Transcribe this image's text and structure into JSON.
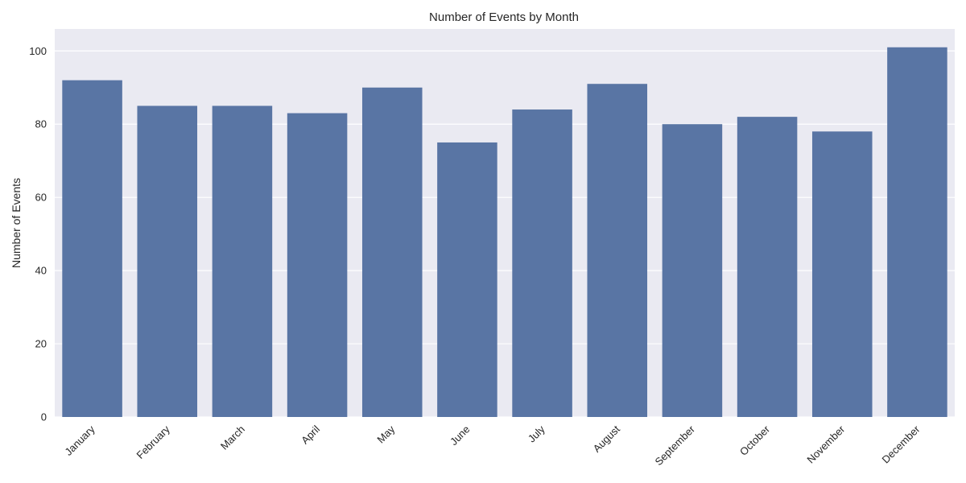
{
  "chart_data": {
    "type": "bar",
    "title": "Number of Events by Month",
    "xlabel": "",
    "ylabel": "Number of Events",
    "categories": [
      "January",
      "February",
      "March",
      "April",
      "May",
      "June",
      "July",
      "August",
      "September",
      "October",
      "November",
      "December"
    ],
    "values": [
      92,
      85,
      85,
      83,
      90,
      75,
      84,
      91,
      80,
      82,
      78,
      101
    ],
    "ylim": [
      0,
      106
    ],
    "yticks": [
      0,
      20,
      40,
      60,
      80,
      100
    ],
    "grid": true,
    "legend": "none",
    "colors": {
      "bar": "#5975a4",
      "plot_background": "#eaeaf2",
      "grid": "#ffffff",
      "text": "#262626"
    }
  }
}
